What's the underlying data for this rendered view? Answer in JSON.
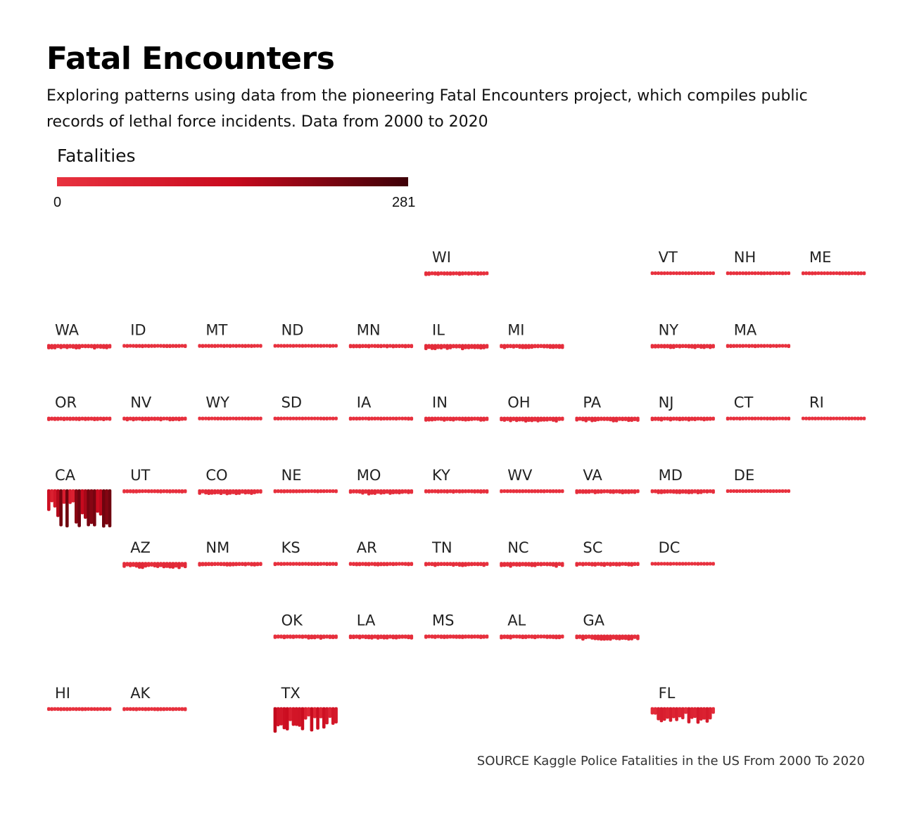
{
  "title": "Fatal Encounters",
  "subtitle": "Exploring patterns using data from the pioneering Fatal Encounters project, which compiles public records of lethal force incidents. Data from 2000 to 2020",
  "source": "SOURCE Kaggle Police Fatalities in the US From 2000 To 2020",
  "colors": {
    "low": "#e8323f",
    "mid": "#c90a1e",
    "high": "#3d0007"
  },
  "chart_data": {
    "type": "heatmap",
    "title": "Fatal Encounters",
    "legend": {
      "title": "Fatalities",
      "min": 0,
      "max": 281,
      "min_label": "0",
      "max_label": "281"
    },
    "states": [
      {
        "abbr": "WI",
        "row": 0,
        "col": 5,
        "peak": 12
      },
      {
        "abbr": "VT",
        "row": 0,
        "col": 8,
        "peak": 2
      },
      {
        "abbr": "NH",
        "row": 0,
        "col": 9,
        "peak": 3
      },
      {
        "abbr": "ME",
        "row": 0,
        "col": 10,
        "peak": 4
      },
      {
        "abbr": "WA",
        "row": 1,
        "col": 0,
        "peak": 22
      },
      {
        "abbr": "ID",
        "row": 1,
        "col": 1,
        "peak": 6
      },
      {
        "abbr": "MT",
        "row": 1,
        "col": 2,
        "peak": 5
      },
      {
        "abbr": "ND",
        "row": 1,
        "col": 3,
        "peak": 3
      },
      {
        "abbr": "MN",
        "row": 1,
        "col": 4,
        "peak": 9
      },
      {
        "abbr": "IL",
        "row": 1,
        "col": 5,
        "peak": 28
      },
      {
        "abbr": "MI",
        "row": 1,
        "col": 6,
        "peak": 20
      },
      {
        "abbr": "NY",
        "row": 1,
        "col": 8,
        "peak": 18
      },
      {
        "abbr": "MA",
        "row": 1,
        "col": 9,
        "peak": 6
      },
      {
        "abbr": "OR",
        "row": 2,
        "col": 0,
        "peak": 11
      },
      {
        "abbr": "NV",
        "row": 2,
        "col": 1,
        "peak": 14
      },
      {
        "abbr": "WY",
        "row": 2,
        "col": 2,
        "peak": 3
      },
      {
        "abbr": "SD",
        "row": 2,
        "col": 3,
        "peak": 3
      },
      {
        "abbr": "IA",
        "row": 2,
        "col": 4,
        "peak": 6
      },
      {
        "abbr": "IN",
        "row": 2,
        "col": 5,
        "peak": 16
      },
      {
        "abbr": "OH",
        "row": 2,
        "col": 6,
        "peak": 30
      },
      {
        "abbr": "PA",
        "row": 2,
        "col": 7,
        "peak": 26
      },
      {
        "abbr": "NJ",
        "row": 2,
        "col": 8,
        "peak": 14
      },
      {
        "abbr": "CT",
        "row": 2,
        "col": 9,
        "peak": 4
      },
      {
        "abbr": "RI",
        "row": 2,
        "col": 10,
        "peak": 2
      },
      {
        "abbr": "CA",
        "row": 3,
        "col": 0,
        "peak": 281
      },
      {
        "abbr": "UT",
        "row": 3,
        "col": 1,
        "peak": 8
      },
      {
        "abbr": "CO",
        "row": 3,
        "col": 2,
        "peak": 26
      },
      {
        "abbr": "NE",
        "row": 3,
        "col": 3,
        "peak": 5
      },
      {
        "abbr": "MO",
        "row": 3,
        "col": 4,
        "peak": 26
      },
      {
        "abbr": "KY",
        "row": 3,
        "col": 5,
        "peak": 10
      },
      {
        "abbr": "WV",
        "row": 3,
        "col": 6,
        "peak": 5
      },
      {
        "abbr": "VA",
        "row": 3,
        "col": 7,
        "peak": 15
      },
      {
        "abbr": "MD",
        "row": 3,
        "col": 8,
        "peak": 16
      },
      {
        "abbr": "DE",
        "row": 3,
        "col": 9,
        "peak": 2
      },
      {
        "abbr": "AZ",
        "row": 4,
        "col": 1,
        "peak": 40
      },
      {
        "abbr": "NM",
        "row": 4,
        "col": 2,
        "peak": 14
      },
      {
        "abbr": "KS",
        "row": 4,
        "col": 3,
        "peak": 7
      },
      {
        "abbr": "AR",
        "row": 4,
        "col": 4,
        "peak": 10
      },
      {
        "abbr": "TN",
        "row": 4,
        "col": 5,
        "peak": 18
      },
      {
        "abbr": "NC",
        "row": 4,
        "col": 6,
        "peak": 24
      },
      {
        "abbr": "SC",
        "row": 4,
        "col": 7,
        "peak": 15
      },
      {
        "abbr": "DC",
        "row": 4,
        "col": 8,
        "peak": 3
      },
      {
        "abbr": "OK",
        "row": 5,
        "col": 3,
        "peak": 19
      },
      {
        "abbr": "LA",
        "row": 5,
        "col": 4,
        "peak": 18
      },
      {
        "abbr": "MS",
        "row": 5,
        "col": 5,
        "peak": 10
      },
      {
        "abbr": "AL",
        "row": 5,
        "col": 6,
        "peak": 14
      },
      {
        "abbr": "GA",
        "row": 5,
        "col": 7,
        "peak": 32
      },
      {
        "abbr": "HI",
        "row": 6,
        "col": 0,
        "peak": 5
      },
      {
        "abbr": "AK",
        "row": 6,
        "col": 1,
        "peak": 6
      },
      {
        "abbr": "TX",
        "row": 6,
        "col": 3,
        "peak": 170
      },
      {
        "abbr": "FL",
        "row": 6,
        "col": 8,
        "peak": 90
      }
    ]
  }
}
